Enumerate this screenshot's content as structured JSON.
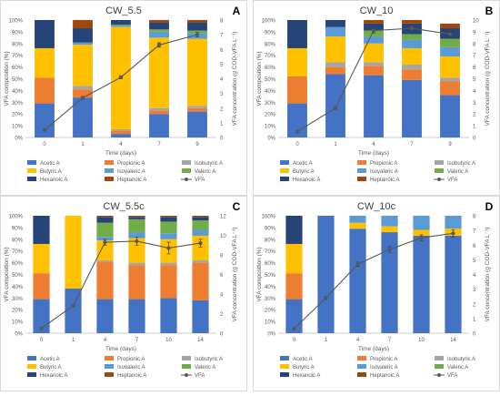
{
  "figure": {
    "component_names": [
      "Acetic A",
      "Propionic A",
      "Isobutyric A",
      "Butyric A",
      "Isovaleric A",
      "Valeric A",
      "Hexanoic A",
      "Heptanoic A"
    ],
    "colors": {
      "Acetic A": "#4472c4",
      "Propionic A": "#ed7d31",
      "Isobutyric A": "#a5a5a5",
      "Butyric A": "#ffc000",
      "Isovaleric A": "#5b9bd5",
      "Valeric A": "#70ad47",
      "Hexanoic A": "#264478",
      "Heptanoic A": "#9e480e",
      "VFA": "#595959"
    }
  },
  "chart_data": [
    {
      "type": "bar",
      "panel_letter": "A",
      "title": "CW_5.5",
      "xlabel": "Time (days)",
      "ylabel": "VFA composition (%)",
      "y2label": "VFA concentration (g COD-VFA L⁻¹)",
      "ylim": [
        0,
        100
      ],
      "y2lim": [
        0,
        8
      ],
      "y2step": 1,
      "categories": [
        "0",
        "1",
        "4",
        "7",
        "9"
      ],
      "series": [
        {
          "name": "Acetic A",
          "values": [
            29,
            34,
            3,
            20,
            22
          ]
        },
        {
          "name": "Propionic A",
          "values": [
            22,
            7,
            3,
            3,
            3
          ]
        },
        {
          "name": "Isobutyric A",
          "values": [
            0,
            3,
            1,
            2,
            2
          ]
        },
        {
          "name": "Butyric A",
          "values": [
            25,
            35,
            87,
            60,
            57
          ]
        },
        {
          "name": "Isovaleric A",
          "values": [
            0,
            2,
            1,
            5,
            5
          ]
        },
        {
          "name": "Valeric A",
          "values": [
            0,
            0,
            1,
            2,
            2
          ]
        },
        {
          "name": "Hexanoic A",
          "values": [
            24,
            12,
            4,
            6,
            7
          ]
        },
        {
          "name": "Heptanoic A",
          "values": [
            0,
            7,
            0,
            2,
            2
          ]
        }
      ],
      "line": {
        "name": "VFA",
        "values": [
          0.5,
          2.7,
          4.1,
          6.3,
          7.0
        ],
        "errors": [
          0,
          0.1,
          0.1,
          0.15,
          0.15
        ]
      },
      "legend": "bottom"
    },
    {
      "type": "bar",
      "panel_letter": "B",
      "title": "CW_10",
      "xlabel": "Time (days)",
      "ylabel": "VFA composition (%)",
      "y2label": "VFA concentration (g COD-VFA L⁻¹)",
      "ylim": [
        0,
        100
      ],
      "y2lim": [
        0,
        10
      ],
      "y2step": 1,
      "categories": [
        "0",
        "1",
        "4",
        "7",
        "9"
      ],
      "series": [
        {
          "name": "Acetic A",
          "values": [
            29,
            54,
            53,
            49,
            36
          ]
        },
        {
          "name": "Propionic A",
          "values": [
            23,
            6,
            8,
            9,
            12
          ]
        },
        {
          "name": "Isobutyric A",
          "values": [
            0,
            4,
            3,
            4,
            3
          ]
        },
        {
          "name": "Butyric A",
          "values": [
            24,
            22,
            16,
            14,
            18
          ]
        },
        {
          "name": "Isovaleric A",
          "values": [
            0,
            8,
            6,
            7,
            8
          ]
        },
        {
          "name": "Valeric A",
          "values": [
            0,
            0,
            5,
            5,
            7
          ]
        },
        {
          "name": "Hexanoic A",
          "values": [
            24,
            6,
            6,
            9,
            9
          ]
        },
        {
          "name": "Heptanoic A",
          "values": [
            0,
            0,
            3,
            3,
            4
          ]
        }
      ],
      "line": {
        "name": "VFA",
        "values": [
          0.5,
          2.5,
          9.1,
          9.3,
          8.8
        ],
        "errors": [
          0,
          0.1,
          0.2,
          0.2,
          0.2
        ]
      },
      "legend": "bottom"
    },
    {
      "type": "bar",
      "panel_letter": "C",
      "title": "CW_5.5c",
      "xlabel": "Time (days)",
      "ylabel": "VFA composition (%)",
      "y2label": "VFA concentration (g COD-VFA L⁻¹)",
      "ylim": [
        0,
        100
      ],
      "y2lim": [
        0,
        12
      ],
      "y2step": 2,
      "categories": [
        "0",
        "1",
        "4",
        "7",
        "10",
        "14"
      ],
      "series": [
        {
          "name": "Acetic A",
          "values": [
            29,
            38,
            29,
            29,
            30,
            28
          ]
        },
        {
          "name": "Propionic A",
          "values": [
            22,
            0,
            32,
            29,
            28,
            32
          ]
        },
        {
          "name": "Isobutyric A",
          "values": [
            0,
            0,
            1,
            2,
            2,
            2
          ]
        },
        {
          "name": "Butyric A",
          "values": [
            25,
            62,
            17,
            21,
            20,
            21
          ]
        },
        {
          "name": "Isovaleric A",
          "values": [
            0,
            0,
            3,
            5,
            5,
            5
          ]
        },
        {
          "name": "Valeric A",
          "values": [
            0,
            0,
            12,
            11,
            10,
            8
          ]
        },
        {
          "name": "Hexanoic A",
          "values": [
            24,
            0,
            5,
            2,
            4,
            3
          ]
        },
        {
          "name": "Heptanoic A",
          "values": [
            0,
            0,
            1,
            1,
            1,
            1
          ]
        }
      ],
      "line": {
        "name": "VFA",
        "values": [
          0.5,
          2.8,
          9.3,
          9.4,
          8.7,
          9.2
        ],
        "errors": [
          0,
          0.1,
          0.3,
          0.4,
          0.6,
          0.4
        ]
      },
      "legend": "bottom"
    },
    {
      "type": "bar",
      "panel_letter": "D",
      "title": "CW_10c",
      "xlabel": "Time (days)",
      "ylabel": "VFA composition (%)",
      "y2label": "VFA concentration (g COD-VFA L⁻¹)",
      "ylim": [
        0,
        100
      ],
      "y2lim": [
        0,
        8
      ],
      "y2step": 1,
      "categories": [
        "0",
        "1",
        "4",
        "7",
        "10",
        "14"
      ],
      "series": [
        {
          "name": "Acetic A",
          "values": [
            29,
            100,
            89,
            86,
            83,
            83
          ]
        },
        {
          "name": "Propionic A",
          "values": [
            22,
            0,
            0,
            0,
            0,
            0
          ]
        },
        {
          "name": "Isobutyric A",
          "values": [
            0,
            0,
            0,
            0,
            0,
            0
          ]
        },
        {
          "name": "Butyric A",
          "values": [
            25,
            0,
            5,
            5,
            5,
            6
          ]
        },
        {
          "name": "Isovaleric A",
          "values": [
            0,
            0,
            6,
            9,
            12,
            11
          ]
        },
        {
          "name": "Valeric A",
          "values": [
            0,
            0,
            0,
            0,
            0,
            0
          ]
        },
        {
          "name": "Hexanoic A",
          "values": [
            24,
            0,
            0,
            0,
            0,
            0
          ]
        },
        {
          "name": "Heptanoic A",
          "values": [
            0,
            0,
            0,
            0,
            0,
            0
          ]
        }
      ],
      "line": {
        "name": "VFA",
        "values": [
          0.3,
          2.4,
          4.7,
          5.7,
          6.5,
          6.8
        ],
        "errors": [
          0,
          0.1,
          0.15,
          0.2,
          0.2,
          0.25
        ]
      },
      "legend": "bottom"
    }
  ]
}
